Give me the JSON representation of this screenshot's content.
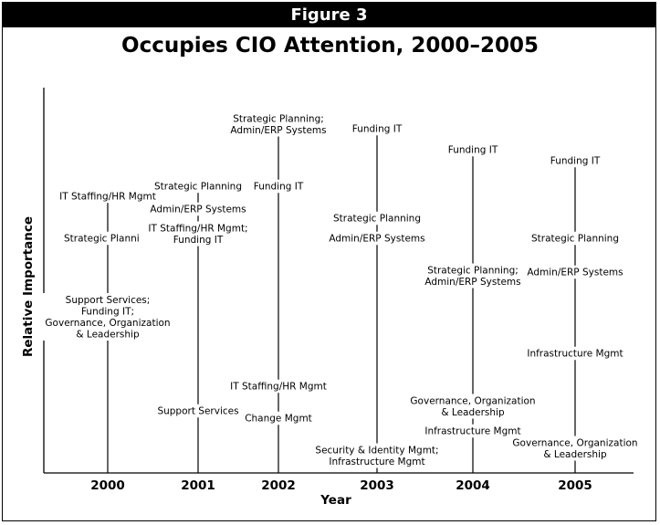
{
  "figure_label": "Figure 3",
  "chart_data": {
    "type": "timeline",
    "title": "Occupies CIO Attention, 2000–2005",
    "xlabel": "Year",
    "ylabel": "Relative Importance",
    "categories": [
      "2000",
      "2001",
      "2002",
      "2003",
      "2004",
      "2005"
    ],
    "columns": [
      {
        "year": "2000",
        "items": [
          {
            "text": "IT Staffing/HR Mgmt",
            "rank": 1
          },
          {
            "text": "Strategic Planning",
            "rank": 2
          },
          {
            "text": "Support Services;\nFunding IT;\nGovernance, Organization\n& Leadership",
            "rank": 3
          }
        ]
      },
      {
        "year": "2001",
        "items": [
          {
            "text": "Strategic Planning",
            "rank": 1
          },
          {
            "text": "Admin/ERP Systems",
            "rank": 2
          },
          {
            "text": "IT Staffing/HR Mgmt;\nFunding IT",
            "rank": 3
          },
          {
            "text": "Support Services",
            "rank": 4
          }
        ]
      },
      {
        "year": "2002",
        "items": [
          {
            "text": "Strategic Planning;\nAdmin/ERP Systems",
            "rank": 1
          },
          {
            "text": "Funding IT",
            "rank": 2
          },
          {
            "text": "IT Staffing/HR Mgmt",
            "rank": 3
          },
          {
            "text": "Change Mgmt",
            "rank": 4
          }
        ]
      },
      {
        "year": "2003",
        "items": [
          {
            "text": "Funding IT",
            "rank": 1
          },
          {
            "text": "Strategic Planning",
            "rank": 2
          },
          {
            "text": "Admin/ERP Systems",
            "rank": 3
          },
          {
            "text": "Security & Identity Mgmt;\nInfrastructure Mgmt",
            "rank": 4
          }
        ]
      },
      {
        "year": "2004",
        "items": [
          {
            "text": "Funding IT",
            "rank": 1
          },
          {
            "text": "Strategic Planning;\nAdmin/ERP Systems",
            "rank": 2
          },
          {
            "text": "Governance, Organization\n& Leadership",
            "rank": 3
          },
          {
            "text": "Infrastructure Mgmt",
            "rank": 4
          }
        ]
      },
      {
        "year": "2005",
        "items": [
          {
            "text": "Funding IT",
            "rank": 1
          },
          {
            "text": "Strategic Planning",
            "rank": 2
          },
          {
            "text": "Admin/ERP Systems",
            "rank": 3
          },
          {
            "text": "Infrastructure Mgmt",
            "rank": 4
          },
          {
            "text": "Governance, Organization\n& Leadership",
            "rank": 5
          }
        ]
      }
    ]
  }
}
